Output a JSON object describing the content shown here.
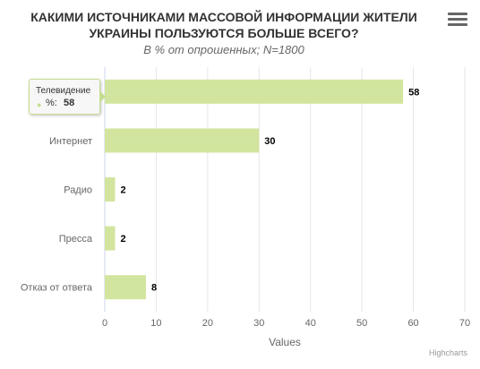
{
  "chart_data": {
    "type": "bar",
    "orientation": "horizontal",
    "title": "КАКИМИ ИСТОЧНИКАМИ МАССОВОЙ ИНФОРМАЦИИ ЖИТЕЛИ УКРАИНЫ ПОЛЬЗУЮТСЯ БОЛЬШЕ ВСЕГО?",
    "title_lines": [
      "КАКИМИ ИСТОЧНИКАМИ МАССОВОЙ ИНФОРМАЦИИ ЖИТЕЛИ",
      "УКРАИНЫ ПОЛЬЗУЮТСЯ БОЛЬШЕ ВСЕГО?"
    ],
    "subtitle": "В % от опрошенных; N=1800",
    "categories": [
      "Телевидение",
      "Интернет",
      "Радио",
      "Пресса",
      "Отказ от ответа"
    ],
    "series": [
      {
        "name": "%",
        "values": [
          58,
          30,
          2,
          2,
          8
        ],
        "color": "#d2e59f"
      }
    ],
    "xlabel": "Values",
    "xlim": [
      0,
      70
    ],
    "ticks": [
      "0",
      "10",
      "20",
      "30",
      "40",
      "50",
      "60",
      "70"
    ],
    "grid": true,
    "data_labels": true
  },
  "tooltip": {
    "category": "Телевидение",
    "series": "%:",
    "value": "58"
  },
  "credits": "Highcharts",
  "colors": {
    "bar": "#d2e59f",
    "grid": "#e6e6e6",
    "axis": "#ccd6eb",
    "text": "#333333",
    "muted": "#666666"
  }
}
